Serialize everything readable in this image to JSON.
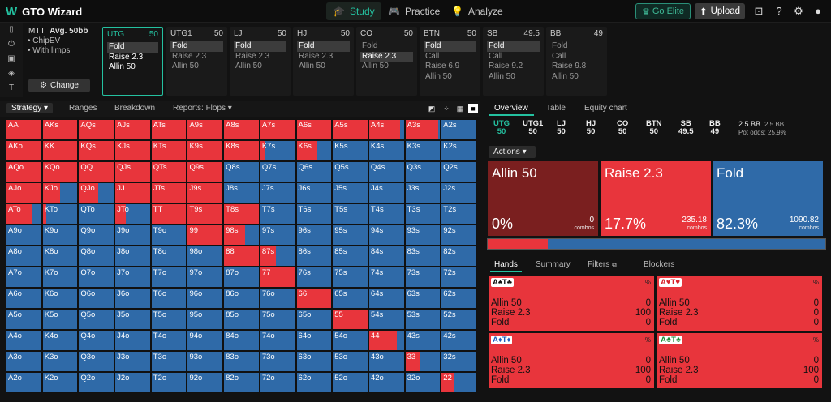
{
  "app": {
    "title": "GTO Wizard",
    "logo_glyph": "W"
  },
  "nav": {
    "tabs": [
      {
        "label": "Study",
        "icon": "graduation-cap-icon",
        "active": true
      },
      {
        "label": "Practice",
        "icon": "gamepad-icon",
        "active": false
      },
      {
        "label": "Analyze",
        "icon": "lightbulb-icon",
        "active": false
      }
    ],
    "gold_label": "Go Elite",
    "upload_label": "Upload"
  },
  "settings": {
    "format": "MTT",
    "stack": "Avg. 50bb",
    "lines": [
      "ChipEV",
      "With limps"
    ],
    "change_label": "Change"
  },
  "positions": [
    {
      "name": "UTG",
      "stack": "50",
      "active": true,
      "actions": [
        "Fold",
        "Raise 2.3",
        "Allin 50"
      ],
      "selected": 0
    },
    {
      "name": "UTG1",
      "stack": "50",
      "active": false,
      "actions": [
        "Fold",
        "Raise 2.3",
        "Allin 50"
      ],
      "selected": 0
    },
    {
      "name": "LJ",
      "stack": "50",
      "active": false,
      "actions": [
        "Fold",
        "Raise 2.3",
        "Allin 50"
      ],
      "selected": 0
    },
    {
      "name": "HJ",
      "stack": "50",
      "active": false,
      "actions": [
        "Fold",
        "Raise 2.3",
        "Allin 50"
      ],
      "selected": 0
    },
    {
      "name": "CO",
      "stack": "50",
      "active": false,
      "actions": [
        "Fold",
        "Raise 2.3",
        "Allin 50"
      ],
      "selected": 1
    },
    {
      "name": "BTN",
      "stack": "50",
      "active": false,
      "actions": [
        "Fold",
        "Call",
        "Raise 6.9",
        "Allin 50"
      ],
      "selected": 0
    },
    {
      "name": "SB",
      "stack": "49.5",
      "active": false,
      "actions": [
        "Fold",
        "Call",
        "Raise 9.2",
        "Allin 50"
      ],
      "selected": 0
    },
    {
      "name": "BB",
      "stack": "49",
      "active": false,
      "actions": [
        "Fold",
        "Call",
        "Raise 9.8",
        "Allin 50"
      ],
      "selected": -1
    }
  ],
  "strategy_tabs": [
    {
      "label": "Strategy ▾",
      "active": true
    },
    {
      "label": "Ranges",
      "active": false
    },
    {
      "label": "Breakdown",
      "active": false
    },
    {
      "label": "Reports: Flops ▾",
      "active": false
    }
  ],
  "ranks": [
    "A",
    "K",
    "Q",
    "J",
    "T",
    "9",
    "8",
    "7",
    "6",
    "5",
    "4",
    "3",
    "2"
  ],
  "grid": [
    [
      1,
      1,
      1,
      1,
      1,
      1,
      1,
      1,
      1,
      1,
      0.9,
      0.95,
      0
    ],
    [
      1,
      1,
      1,
      1,
      1,
      1,
      1,
      0.15,
      0.6,
      0,
      0,
      0,
      0
    ],
    [
      1,
      1,
      1,
      1,
      1,
      1,
      0,
      0,
      0,
      0,
      0,
      0,
      0
    ],
    [
      1,
      0.5,
      0.55,
      1,
      1,
      1,
      0,
      0,
      0,
      0,
      0,
      0,
      0
    ],
    [
      0.75,
      0.1,
      0,
      0.3,
      1,
      1,
      1,
      0,
      0,
      0,
      0,
      0,
      0
    ],
    [
      0,
      0,
      0,
      0,
      0,
      1,
      0.6,
      0,
      0,
      0,
      0,
      0,
      0
    ],
    [
      0,
      0,
      0,
      0,
      0,
      0,
      1,
      0.45,
      0,
      0,
      0,
      0,
      0
    ],
    [
      0,
      0,
      0,
      0,
      0,
      0,
      0,
      1,
      0,
      0,
      0,
      0,
      0
    ],
    [
      0,
      0,
      0,
      0,
      0,
      0,
      0,
      0,
      1,
      0,
      0,
      0,
      0
    ],
    [
      0,
      0,
      0,
      0,
      0,
      0,
      0,
      0,
      0,
      1,
      0,
      0,
      0
    ],
    [
      0,
      0,
      0,
      0,
      0,
      0,
      0,
      0,
      0,
      0,
      0.8,
      0,
      0
    ],
    [
      0,
      0,
      0,
      0,
      0,
      0,
      0,
      0,
      0,
      0,
      0,
      0.4,
      0
    ],
    [
      0,
      0,
      0,
      0,
      0,
      0,
      0,
      0,
      0,
      0,
      0,
      0,
      0.35
    ]
  ],
  "right_panel": {
    "tabs": [
      {
        "label": "Overview",
        "active": true
      },
      {
        "label": "Table",
        "active": false
      },
      {
        "label": "Equity chart",
        "active": false
      }
    ],
    "positions": [
      {
        "name": "UTG",
        "stack": "50",
        "active": true
      },
      {
        "name": "UTG1",
        "stack": "50",
        "active": false
      },
      {
        "name": "LJ",
        "stack": "50",
        "active": false
      },
      {
        "name": "HJ",
        "stack": "50",
        "active": false
      },
      {
        "name": "CO",
        "stack": "50",
        "active": false
      },
      {
        "name": "BTN",
        "stack": "50",
        "active": false
      },
      {
        "name": "SB",
        "stack": "49.5",
        "active": false
      },
      {
        "name": "BB",
        "stack": "49",
        "active": false
      }
    ],
    "pot": {
      "value": "2.5 BB",
      "value2": "2.5 BB",
      "odds_label": "Pot odds:",
      "odds_value": "25.9%"
    },
    "actions_label": "Actions ▾",
    "actions": [
      {
        "name": "Allin 50",
        "pct": "0%",
        "combos": "0",
        "unit": "combos",
        "color": "#7a1f1f"
      },
      {
        "name": "Raise 2.3",
        "pct": "17.7%",
        "combos": "235.18",
        "unit": "combos",
        "color": "#e8353c"
      },
      {
        "name": "Fold",
        "pct": "82.3%",
        "combos": "1090.82",
        "unit": "combos",
        "color": "#2f6aa8"
      }
    ],
    "raise_fraction": 0.177,
    "hands_tabs": [
      {
        "label": "Hands",
        "active": true
      },
      {
        "label": "Summary",
        "active": false
      },
      {
        "label": "Filters",
        "active": false
      },
      {
        "label": "Blockers",
        "active": false
      }
    ],
    "combos": [
      {
        "cards": [
          {
            "t": "A♠",
            "c": "dark"
          },
          {
            "t": "T♣",
            "c": "dark"
          }
        ],
        "pct_label": "%",
        "rows": [
          [
            "Allin 50",
            "0"
          ],
          [
            "Raise 2.3",
            "100"
          ],
          [
            "Fold",
            "0"
          ]
        ]
      },
      {
        "cards": [
          {
            "t": "A♥",
            "c": "red"
          },
          {
            "t": "T♥",
            "c": "red"
          }
        ],
        "pct_label": "%",
        "rows": [
          [
            "Allin 50",
            "0"
          ],
          [
            "Raise 2.3",
            "0"
          ],
          [
            "Fold",
            "0"
          ]
        ]
      },
      {
        "cards": [
          {
            "t": "A♦",
            "c": "blue"
          },
          {
            "t": "T♦",
            "c": "blue"
          }
        ],
        "pct_label": "%",
        "rows": [
          [
            "Allin 50",
            "0"
          ],
          [
            "Raise 2.3",
            "100"
          ],
          [
            "Fold",
            "0"
          ]
        ]
      },
      {
        "cards": [
          {
            "t": "A♣",
            "c": "green"
          },
          {
            "t": "T♣",
            "c": "green"
          }
        ],
        "pct_label": "%",
        "rows": [
          [
            "Allin 50",
            "0"
          ],
          [
            "Raise 2.3",
            "100"
          ],
          [
            "Fold",
            "0"
          ]
        ]
      }
    ]
  }
}
